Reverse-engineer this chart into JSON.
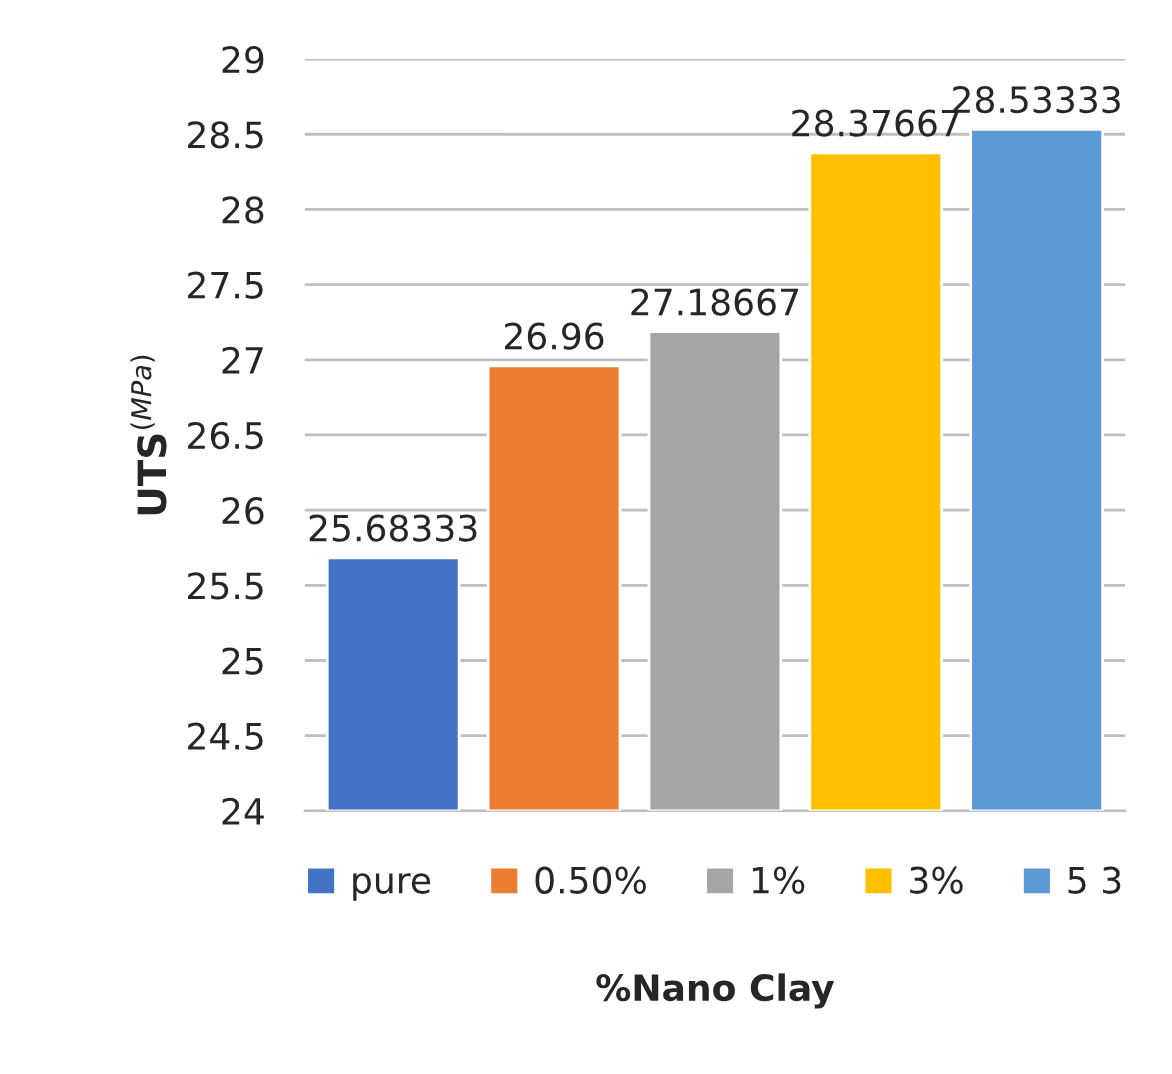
{
  "chart_data": {
    "type": "bar",
    "xlabel": "%Nano Clay",
    "ylabel": "UTS$^{(MPa)}$",
    "categories": [
      null,
      null,
      null,
      null,
      null
    ],
    "series": [
      {
        "name": "pure",
        "color": "#4472c4",
        "values": [
          25.68333,
          null,
          null,
          null,
          null
        ]
      },
      {
        "name": "0.50%",
        "color": "#ed7d31",
        "values": [
          null,
          26.96,
          null,
          null,
          null
        ]
      },
      {
        "name": "1%",
        "color": "#a5a5a5",
        "values": [
          null,
          null,
          27.18667,
          null,
          null
        ]
      },
      {
        "name": "3%",
        "color": "#ffc000",
        "values": [
          null,
          null,
          null,
          28.37667,
          null
        ]
      },
      {
        "name": "5 3",
        "color": "#5b9bd5",
        "values": [
          null,
          null,
          null,
          null,
          28.53333
        ]
      }
    ],
    "ylim": [
      24,
      29
    ],
    "yticks": [
      24,
      24.5,
      25,
      25.5,
      26,
      26.5,
      27,
      27.5,
      28,
      28.5,
      29
    ],
    "grid": "y",
    "legend": "bottom",
    "data_labels": true
  }
}
